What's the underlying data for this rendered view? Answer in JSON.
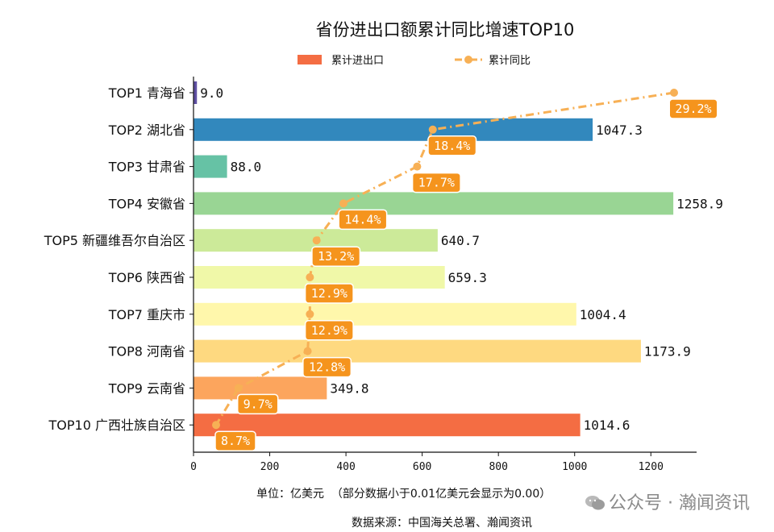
{
  "chart_data": {
    "type": "bar",
    "title": "省份进出口额累计同比增速TOP10",
    "categories": [
      "TOP1 青海省",
      "TOP2 湖北省",
      "TOP3 甘肃省",
      "TOP4 安徽省",
      "TOP5 新疆维吾尔自治区",
      "TOP6 陕西省",
      "TOP7 重庆市",
      "TOP8 河南省",
      "TOP9 云南省",
      "TOP10 广西壮族自治区"
    ],
    "series": [
      {
        "name": "累计进出口",
        "type": "bar",
        "values": [
          9.0,
          1047.3,
          88.0,
          1258.9,
          640.7,
          659.3,
          1004.4,
          1173.9,
          349.8,
          1014.6
        ],
        "value_labels": [
          "9.0",
          "1047.3",
          "88.0",
          "1258.9",
          "640.7",
          "659.3",
          "1004.4",
          "1173.9",
          "349.8",
          "1014.6"
        ],
        "colors": [
          "#5e4fa2",
          "#3288bd",
          "#66c2a5",
          "#99d594",
          "#ccea99",
          "#f0f8a8",
          "#fff7ab",
          "#fed980",
          "#fca55d",
          "#f46d43"
        ]
      },
      {
        "name": "累计同比",
        "type": "line",
        "color": "#f7b055",
        "values": [
          29.2,
          18.4,
          17.7,
          14.4,
          13.2,
          12.9,
          12.9,
          12.8,
          9.7,
          8.7
        ],
        "value_labels": [
          "29.2%",
          "18.4%",
          "17.7%",
          "14.4%",
          "13.2%",
          "12.9%",
          "12.9%",
          "12.8%",
          "9.7%",
          "8.7%"
        ],
        "label_bg": "#f5941d"
      }
    ],
    "xlim": [
      0,
      1320
    ],
    "xticks": [
      0,
      200,
      400,
      600,
      800,
      1000,
      1200
    ],
    "line_x_scale": "unlabeled secondary scale (approx. 0–30%)",
    "legend_position": "top-center",
    "grid": false
  },
  "footnotes": {
    "unit": "单位：亿美元  （部分数据小于0.01亿美元会显示为0.00）",
    "source": "数据来源：中国海关总署、瀚闻资讯"
  },
  "watermark": {
    "text": "公众号 · 瀚闻资讯",
    "icon": "wechat-icon"
  }
}
